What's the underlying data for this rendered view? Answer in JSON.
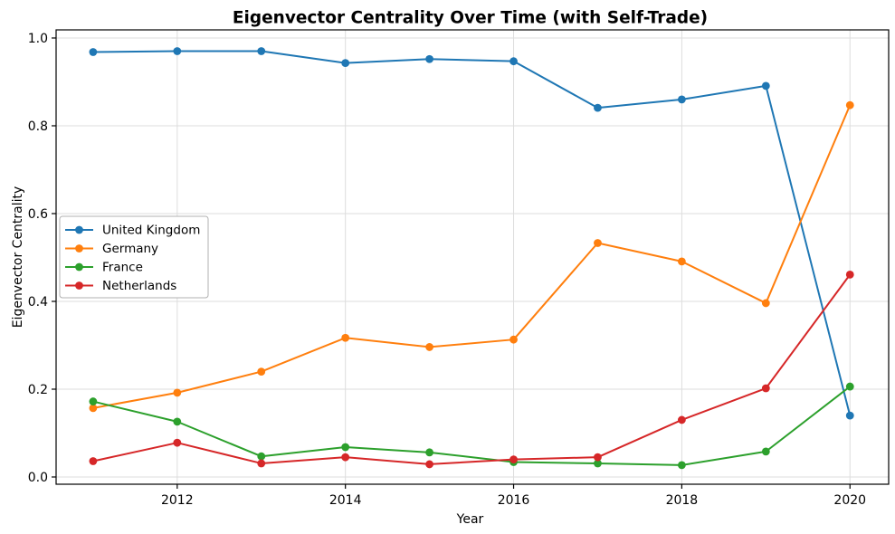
{
  "figure": {
    "background": "#ffffff"
  },
  "chart_data": {
    "type": "line",
    "title": "Eigenvector Centrality Over Time (with Self-Trade)",
    "xlabel": "Year",
    "ylabel": "Eigenvector Centrality",
    "x": [
      2011,
      2012,
      2013,
      2014,
      2015,
      2016,
      2017,
      2018,
      2019,
      2020
    ],
    "series": [
      {
        "name": "United Kingdom",
        "color": "#1f77b4",
        "marker": "circle",
        "values": [
          0.968,
          0.97,
          0.97,
          0.943,
          0.952,
          0.947,
          0.841,
          0.86,
          0.891,
          0.14
        ]
      },
      {
        "name": "Germany",
        "color": "#ff7f0e",
        "marker": "circle",
        "values": [
          0.157,
          0.192,
          0.24,
          0.317,
          0.296,
          0.313,
          0.533,
          0.491,
          0.396,
          0.847
        ]
      },
      {
        "name": "France",
        "color": "#2ca02c",
        "marker": "circle",
        "values": [
          0.172,
          0.126,
          0.047,
          0.068,
          0.056,
          0.034,
          0.031,
          0.027,
          0.058,
          0.206
        ]
      },
      {
        "name": "Netherlands",
        "color": "#d62728",
        "marker": "circle",
        "values": [
          0.036,
          0.078,
          0.031,
          0.045,
          0.029,
          0.04,
          0.045,
          0.13,
          0.202,
          0.461
        ]
      }
    ],
    "xticks": [
      2012,
      2014,
      2016,
      2018,
      2020
    ],
    "xtick_labels": [
      "2012",
      "2014",
      "2016",
      "2018",
      "2020"
    ],
    "yticks": [
      0.0,
      0.2,
      0.4,
      0.6,
      0.8,
      1.0
    ],
    "ytick_labels": [
      "0.0",
      "0.2",
      "0.4",
      "0.6",
      "0.8",
      "1.0"
    ],
    "xlim": [
      2010.56,
      2020.46
    ],
    "ylim": [
      -0.0165,
      1.0185
    ],
    "grid": true,
    "grid_color": "#dddddd",
    "spine_color": "#000000",
    "legend_position": "center-left",
    "legend_border_color": "#b0b0b0",
    "legend_background": "#ffffff"
  }
}
